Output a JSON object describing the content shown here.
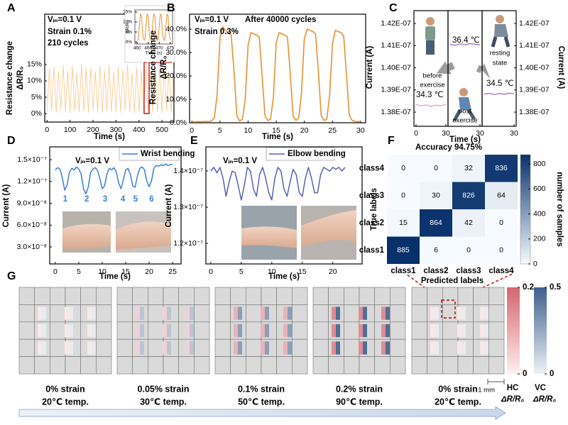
{
  "chart_data": [
    {
      "type": "line",
      "panel": "A",
      "annotations": [
        "Vᵢₙ=0.1 V",
        "Strain 0.1%",
        "210 cycles"
      ],
      "xlabel": "Time (s)",
      "ylabel": [
        "Resistance change",
        "ΔR/R₀"
      ],
      "x": [
        0,
        10,
        20,
        30,
        40,
        50,
        60,
        70,
        80,
        90,
        100,
        110,
        120,
        130,
        140,
        150,
        160,
        170,
        180,
        190,
        200,
        210,
        220,
        230,
        240,
        250,
        260,
        270,
        280,
        290,
        300,
        310,
        320,
        330,
        340,
        350,
        360,
        370,
        380,
        390,
        400,
        410,
        420,
        430,
        440,
        450,
        460,
        470,
        480,
        490,
        500,
        510,
        520,
        530,
        540,
        550
      ],
      "series": [
        {
          "color": "#f7c98a",
          "values": [
            0.4,
            13.5,
            0.8,
            14.2,
            0.3,
            12.8,
            1.0,
            14.8,
            0.5,
            13.1,
            0.2,
            14.5,
            0.9,
            12.6,
            0.4,
            15.2,
            0.7,
            13.8,
            0.3,
            14.0,
            1.1,
            12.9,
            0.5,
            14.6,
            0.2,
            13.3,
            0.8,
            15.0,
            0.4,
            12.7,
            0.6,
            14.3,
            0.3,
            13.6,
            0.9,
            14.9,
            0.5,
            12.4,
            0.2,
            14.1,
            0.7,
            13.0,
            0.4,
            15.1,
            0.8,
            12.8,
            0.3,
            14.4,
            0.6,
            13.7,
            0.2,
            14.7,
            0.9,
            12.9,
            0.5,
            13.9
          ]
        }
      ],
      "xlim": [
        -10,
        552
      ],
      "ylim": [
        -2.6,
        30.4
      ],
      "xticks": [
        0,
        100,
        200,
        300,
        400,
        500
      ],
      "yticks": [
        {
          "value": 0,
          "label": "0%"
        },
        {
          "value": 5,
          "label": "5%"
        },
        {
          "value": 10,
          "label": "10%"
        },
        {
          "value": 15,
          "label": "15%"
        }
      ],
      "inset": {
        "xlabel": "Time (s)",
        "ylabel": "ΔR/R₀",
        "x": [
          460,
          460.5,
          461,
          461.5,
          462,
          462.5,
          463,
          463.5,
          464,
          464.5,
          465,
          465.5,
          466,
          466.5,
          467,
          467.5,
          468,
          468.5,
          469,
          469.5,
          470,
          470.5,
          471,
          471.5,
          472,
          472.5,
          473,
          473.5,
          474,
          474.5,
          475
        ],
        "series": [
          {
            "color": "#e8902e",
            "values": [
              1,
              1,
              8,
              14,
              13,
              4,
              1,
              1,
              8,
              14,
              13,
              4,
              1,
              1,
              8,
              14,
              13,
              4,
              1,
              1,
              8,
              14,
              13,
              4,
              1,
              1,
              8,
              14,
              13,
              4,
              1
            ]
          }
        ],
        "xlim": [
          459,
          476
        ],
        "ylim": [
          -1,
          16
        ],
        "xticks": [
          460,
          465,
          470,
          475
        ],
        "yticks": [
          {
            "value": 0,
            "label": "0%"
          },
          {
            "value": 5,
            "label": "5%"
          },
          {
            "value": 10,
            "label": "10%"
          },
          {
            "value": 15,
            "label": "15%"
          }
        ]
      }
    },
    {
      "type": "line",
      "panel": "B",
      "annotations": [
        "Vᵢₙ=0.1 V",
        "After 40000 cycles",
        "Strain 0.3%"
      ],
      "xlabel": "Time (s)",
      "ylabel": [
        "Resistance change",
        "ΔR/R₀"
      ],
      "x": [
        0,
        0.5,
        1,
        1.5,
        2,
        2.5,
        3,
        3.5,
        4,
        4.5,
        5,
        5.5,
        6,
        6.5,
        7,
        7.5,
        8,
        8.5,
        9,
        9.5,
        10,
        10.5,
        11,
        11.5,
        12,
        12.5,
        13,
        13.5,
        14,
        14.5,
        15,
        15.5,
        16,
        16.5,
        17,
        17.5,
        18,
        18.5,
        19,
        19.5,
        20,
        20.5,
        21,
        21.5,
        22,
        22.5,
        23,
        23.5,
        24,
        24.5,
        25,
        25.5,
        26,
        26.5,
        27,
        27.5,
        28,
        28.5,
        29,
        29.5,
        30
      ],
      "series": [
        {
          "color": "#e8902e",
          "values": [
            0.5,
            0.3,
            0.5,
            0.4,
            0.5,
            0.6,
            0.5,
            0.8,
            2,
            12,
            36,
            41,
            39.5,
            38.5,
            37.5,
            22,
            3,
            0.8,
            1.5,
            10,
            33,
            38.5,
            38,
            37.5,
            36.5,
            20,
            3,
            1,
            1.5,
            11,
            34,
            38.5,
            38,
            37.5,
            36.5,
            21,
            3,
            1,
            2,
            13,
            36,
            40,
            39.5,
            39,
            38,
            22,
            3,
            1,
            1.5,
            12,
            34,
            39.5,
            39,
            38.5,
            37,
            20,
            3,
            1,
            0.6,
            0.5,
            0.5
          ]
        }
      ],
      "xlim": [
        -0.4,
        30.9
      ],
      "ylim": [
        0,
        46.4
      ],
      "xticks": [
        0,
        5,
        10,
        15,
        20,
        25,
        30
      ],
      "yticks": [
        {
          "value": 0,
          "label": "0.0%"
        },
        {
          "value": 10,
          "label": "10.0%"
        },
        {
          "value": 20,
          "label": "20.0%"
        },
        {
          "value": 30,
          "label": "30.0%"
        },
        {
          "value": 40,
          "label": "40.0%"
        }
      ]
    },
    {
      "type": "multiline",
      "panel": "C",
      "xlabel": "Time (s)",
      "ylabel": "Current (A)",
      "ylim": [
        1.3736e-07,
        1.4258e-07
      ],
      "yticks": [
        {
          "value": 1.38e-07,
          "label": "1.38E-07"
        },
        {
          "value": 1.39e-07,
          "label": "1.39E-07"
        },
        {
          "value": 1.4e-07,
          "label": "1.40E-07"
        },
        {
          "value": 1.41e-07,
          "label": "1.41E-07"
        },
        {
          "value": 1.42e-07,
          "label": "1.42E-07"
        }
      ],
      "subplots": [
        {
          "label": [
            "before",
            "exercise"
          ],
          "annotation": "34.3 ℃",
          "color": "#d9a3c9",
          "xlim": [
            0,
            30
          ],
          "xticks": [
            0,
            30
          ],
          "x": [
            0,
            5,
            10,
            15,
            20,
            25,
            30
          ],
          "values": [
            1.3835e-07,
            1.3828e-07,
            1.3833e-07,
            1.3826e-07,
            1.3831e-07,
            1.3829e-07,
            1.3834e-07
          ]
        },
        {
          "label": [
            "post",
            "exercise"
          ],
          "annotation": "36.4 ℃",
          "color": "#9b6fc0",
          "xlim": [
            0,
            30
          ],
          "xticks": [
            30
          ],
          "x": [
            0,
            5,
            10,
            15,
            20,
            25,
            30
          ],
          "values": [
            1.4105e-07,
            1.4102e-07,
            1.4108e-07,
            1.4104e-07,
            1.4109e-07,
            1.4106e-07,
            1.4103e-07
          ]
        },
        {
          "label": [
            "resting",
            "state"
          ],
          "annotation": "34.5 ℃",
          "color": "#a070c8",
          "xlim": [
            0,
            30
          ],
          "xticks": [
            30
          ],
          "x": [
            0,
            5,
            10,
            15,
            20,
            25,
            30
          ],
          "values": [
            1.3881e-07,
            1.3885e-07,
            1.3879e-07,
            1.3884e-07,
            1.388e-07,
            1.3886e-07,
            1.3882e-07
          ]
        }
      ]
    },
    {
      "type": "line",
      "panel": "D",
      "annotations": [
        "Vᵢₙ=0.1 V"
      ],
      "peak_labels": [
        "1",
        "2",
        "3",
        "4",
        "5",
        "6"
      ],
      "xlabel": "Time (s)",
      "ylabel": "Current (A)",
      "x": [
        0,
        0.5,
        1,
        1.5,
        2,
        2.5,
        3,
        3.5,
        4,
        4.5,
        5,
        5.5,
        6,
        6.5,
        7,
        7.5,
        8,
        8.5,
        9,
        9.5,
        10,
        10.5,
        11,
        11.5,
        12,
        12.5,
        13,
        13.5,
        14,
        14.5,
        15,
        15.5,
        16,
        16.5,
        17,
        17.5,
        18,
        18.5,
        19,
        19.5,
        20,
        20.5,
        21,
        21.5,
        22,
        22.5,
        23,
        23.5,
        24,
        24.5,
        25
      ],
      "series": [
        {
          "name": "Wrist bending",
          "color": "#3a7fd5",
          "values": [
            1.36e-07,
            1.39e-07,
            1.37e-07,
            1.25e-07,
            1.08e-07,
            1.15e-07,
            1.33e-07,
            1.38e-07,
            1.36e-07,
            1.4e-07,
            1.37e-07,
            1.3e-07,
            1.1e-07,
            1.03e-07,
            1.12e-07,
            1.32e-07,
            1.37e-07,
            1.39e-07,
            1.35e-07,
            1.24e-07,
            1.1e-07,
            1.14e-07,
            1.3e-07,
            1.38e-07,
            1.36e-07,
            1.39e-07,
            1.33e-07,
            1.18e-07,
            1.1e-07,
            1.22e-07,
            1.36e-07,
            1.38e-07,
            1.3e-07,
            1.14e-07,
            1.12e-07,
            1.28e-07,
            1.38e-07,
            1.4e-07,
            1.36e-07,
            1.2e-07,
            1.13e-07,
            1.21e-07,
            1.38e-07,
            1.42e-07,
            1.41e-07,
            1.43e-07,
            1.42e-07,
            1.44e-07,
            1.42e-07,
            1.43e-07,
            1.44e-07
          ]
        }
      ],
      "xlim": [
        -1.2,
        26.8
      ],
      "ylim": [
        6.6e-09,
        1.676e-07
      ],
      "xticks": [
        0,
        5,
        10,
        15,
        20,
        25
      ],
      "yticks": [
        {
          "value": 3e-08,
          "label": "3.0×10⁻⁸"
        },
        {
          "value": 6e-08,
          "label": "6.0×10⁻⁸"
        },
        {
          "value": 9e-08,
          "label": "9.0×10⁻⁸"
        },
        {
          "value": 1.2e-07,
          "label": "1.2×10⁻⁷"
        },
        {
          "value": 1.5e-07,
          "label": "1.5×10⁻⁷"
        }
      ]
    },
    {
      "type": "line",
      "panel": "E",
      "annotations": [
        "Vᵢₙ=0.1 V"
      ],
      "xlabel": "Time (s)",
      "ylabel": "Current (A)",
      "x": [
        0,
        0.5,
        1,
        1.5,
        2,
        2.5,
        3,
        3.5,
        4,
        4.5,
        5,
        5.5,
        6,
        6.5,
        7,
        7.5,
        8,
        8.5,
        9,
        9.5,
        10,
        10.5,
        11,
        11.5,
        12,
        12.5,
        13,
        13.5,
        14,
        14.5,
        15,
        15.5,
        16,
        16.5,
        17,
        17.5,
        18,
        18.5,
        19,
        19.5,
        20,
        20.5,
        21,
        21.5,
        22
      ],
      "series": [
        {
          "name": "Elbow bending",
          "color": "#5a5fb8",
          "values": [
            1.4e-07,
            1.41e-07,
            1.395e-07,
            1.41e-07,
            1.38e-07,
            1.33e-07,
            1.37e-07,
            1.4e-07,
            1.395e-07,
            1.36e-07,
            1.32e-07,
            1.36e-07,
            1.41e-07,
            1.4e-07,
            1.35e-07,
            1.33e-07,
            1.39e-07,
            1.41e-07,
            1.38e-07,
            1.34e-07,
            1.32e-07,
            1.38e-07,
            1.41e-07,
            1.4e-07,
            1.35e-07,
            1.33e-07,
            1.37e-07,
            1.405e-07,
            1.39e-07,
            1.34e-07,
            1.33e-07,
            1.38e-07,
            1.41e-07,
            1.38e-07,
            1.34e-07,
            1.34e-07,
            1.39e-07,
            1.41e-07,
            1.405e-07,
            1.4e-07,
            1.41e-07,
            1.405e-07,
            1.41e-07,
            1.4e-07,
            1.41e-07
          ]
        }
      ],
      "xlim": [
        -0.8,
        24.8
      ],
      "ylim": [
        1.1431e-07,
        1.4667e-07
      ],
      "xticks": [
        0,
        5,
        10,
        15,
        20
      ],
      "yticks": [
        {
          "value": 1.2e-07,
          "label": "1.2×10⁻⁷"
        },
        {
          "value": 1.3e-07,
          "label": "1.3×10⁻⁷"
        },
        {
          "value": 1.4e-07,
          "label": "1.4×10⁻⁷"
        }
      ]
    },
    {
      "type": "heatmap",
      "panel": "F",
      "title": "Accuracy 94.75%",
      "xlabel": "Predicted labels",
      "ylabel": "True labels",
      "x_categories": [
        "class1",
        "class2",
        "class3",
        "class4"
      ],
      "y_categories": [
        "class4",
        "class3",
        "class2",
        "class1"
      ],
      "values": [
        [
          0,
          0,
          32,
          836
        ],
        [
          0,
          30,
          826,
          64
        ],
        [
          15,
          864,
          42,
          0
        ],
        [
          885,
          6,
          0,
          0
        ]
      ],
      "colorbar": {
        "label": "number of samples",
        "lim": [
          0,
          875
        ],
        "ticks": [
          0,
          200,
          400,
          600,
          800
        ]
      }
    },
    {
      "type": "grid",
      "panel": "G",
      "conditions": [
        {
          "strain": "0% strain",
          "temp": "20℃ temp.",
          "hc": 0.03,
          "vc": 0.06
        },
        {
          "strain": "0.05% strain",
          "temp": "30℃ temp.",
          "hc": 0.06,
          "vc": 0.18
        },
        {
          "strain": "0.1% strain",
          "temp": "50℃ temp.",
          "hc": 0.1,
          "vc": 0.3
        },
        {
          "strain": "0.2% strain",
          "temp": "90℃ temp.",
          "hc": 0.15,
          "vc": 0.45
        },
        {
          "strain": "0% strain",
          "temp": "20℃ temp.",
          "hc": 0.03,
          "vc": 0.06
        }
      ],
      "colorbars": [
        {
          "name": "HC",
          "color": "#d5656e",
          "lim": [
            0,
            0.2
          ],
          "ticks": [
            0,
            0.2
          ]
        },
        {
          "name": "VC",
          "color": "#3d5f8a",
          "lim": [
            0,
            0.5
          ],
          "ticks": [
            0,
            0.5
          ]
        }
      ],
      "colorbar_label": "ΔR/R₀",
      "scale_bar": "1 mm"
    }
  ]
}
